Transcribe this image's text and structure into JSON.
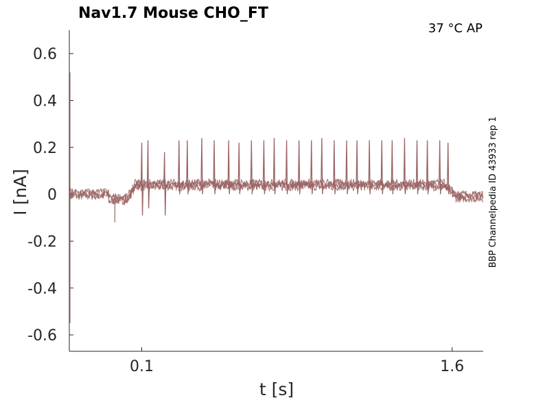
{
  "chart_data": {
    "type": "line",
    "title": "Nav1.7  Mouse  CHO_FT",
    "annotation": "37 °C  AP",
    "side_label": "BBP Channelpedia ID 43933 rep 1",
    "xlabel": "t [s]",
    "ylabel": "I [nA]",
    "xlim": [
      -0.25,
      1.75
    ],
    "ylim": [
      -0.67,
      0.7
    ],
    "x_ticks": [
      0.1,
      1.6
    ],
    "x_tick_labels": [
      "0.1",
      "1.6"
    ],
    "y_ticks": [
      0.6,
      0.4,
      0.2,
      0,
      -0.2,
      -0.4,
      -0.6
    ],
    "y_tick_labels": [
      "0.6",
      "0.4",
      "0.2",
      "0",
      "-0.2",
      "-0.4",
      "-0.6"
    ],
    "grid": false,
    "line_color": "#9a6464",
    "series": [
      {
        "values_description_free": true,
        "baseline_segments": [
          {
            "x": [
              -0.25,
              -0.06
            ],
            "y": 0.0
          },
          {
            "x": [
              -0.06,
              0.05
            ],
            "y": -0.02
          },
          {
            "x": [
              0.05,
              0.21
            ],
            "y": 0.04
          },
          {
            "x": [
              0.21,
              1.58
            ],
            "y": 0.04
          },
          {
            "x": [
              1.58,
              1.75
            ],
            "y": -0.01
          }
        ],
        "initial_transient": {
          "x": -0.247,
          "y_min": -0.55,
          "y_max": 0.52
        },
        "dip": {
          "x": -0.03,
          "y": -0.12
        },
        "spikes": [
          {
            "x": 0.1,
            "peak": 0.22,
            "trough": -0.09
          },
          {
            "x": 0.13,
            "peak": 0.23,
            "trough": -0.06
          },
          {
            "x": 0.21,
            "peak": 0.18,
            "trough": -0.09
          },
          {
            "x": 0.28,
            "peak": 0.23
          },
          {
            "x": 0.32,
            "peak": 0.23
          },
          {
            "x": 0.39,
            "peak": 0.24
          },
          {
            "x": 0.45,
            "peak": 0.23
          },
          {
            "x": 0.52,
            "peak": 0.23
          },
          {
            "x": 0.57,
            "peak": 0.22
          },
          {
            "x": 0.63,
            "peak": 0.23
          },
          {
            "x": 0.69,
            "peak": 0.23
          },
          {
            "x": 0.74,
            "peak": 0.24
          },
          {
            "x": 0.8,
            "peak": 0.23
          },
          {
            "x": 0.86,
            "peak": 0.23
          },
          {
            "x": 0.92,
            "peak": 0.23
          },
          {
            "x": 0.97,
            "peak": 0.24
          },
          {
            "x": 1.03,
            "peak": 0.23
          },
          {
            "x": 1.09,
            "peak": 0.23
          },
          {
            "x": 1.14,
            "peak": 0.23
          },
          {
            "x": 1.2,
            "peak": 0.23
          },
          {
            "x": 1.26,
            "peak": 0.23
          },
          {
            "x": 1.31,
            "peak": 0.23
          },
          {
            "x": 1.37,
            "peak": 0.24
          },
          {
            "x": 1.43,
            "peak": 0.23
          },
          {
            "x": 1.48,
            "peak": 0.23
          },
          {
            "x": 1.54,
            "peak": 0.23
          },
          {
            "x": 1.58,
            "peak": 0.22
          }
        ]
      }
    ]
  }
}
